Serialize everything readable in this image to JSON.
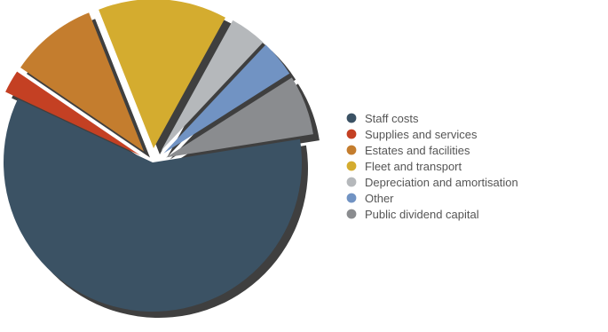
{
  "chart_data": {
    "type": "pie",
    "title": "",
    "legend_position": "right",
    "slices": [
      {
        "label": "Staff costs",
        "value": 59.5,
        "color": "#3b5264"
      },
      {
        "label": "Supplies and services",
        "value": 2.5,
        "color": "#c44023"
      },
      {
        "label": "Estates and facilities",
        "value": 9.5,
        "color": "#c47d2e"
      },
      {
        "label": "Fleet and transport",
        "value": 14.0,
        "color": "#d4ac2f"
      },
      {
        "label": "Depreciation and amortisation",
        "value": 4.0,
        "color": "#b5b8bb"
      },
      {
        "label": "Other",
        "value": 4.0,
        "color": "#7193c3"
      },
      {
        "label": "Public dividend capital",
        "value": 6.5,
        "color": "#8a8c8f"
      }
    ]
  },
  "legend": {
    "items": [
      {
        "label": "Staff costs",
        "color": "#3b5264"
      },
      {
        "label": "Supplies and services",
        "color": "#c44023"
      },
      {
        "label": "Estates and facilities",
        "color": "#c47d2e"
      },
      {
        "label": "Fleet and transport",
        "color": "#d4ac2f"
      },
      {
        "label": "Depreciation and amortisation",
        "color": "#b5b8bb"
      },
      {
        "label": "Other",
        "color": "#7193c3"
      },
      {
        "label": "Public dividend capital",
        "color": "#8a8c8f"
      }
    ]
  },
  "colors": {
    "shadow": "#2f2f2f",
    "text": "#555555",
    "background": "#ffffff"
  }
}
